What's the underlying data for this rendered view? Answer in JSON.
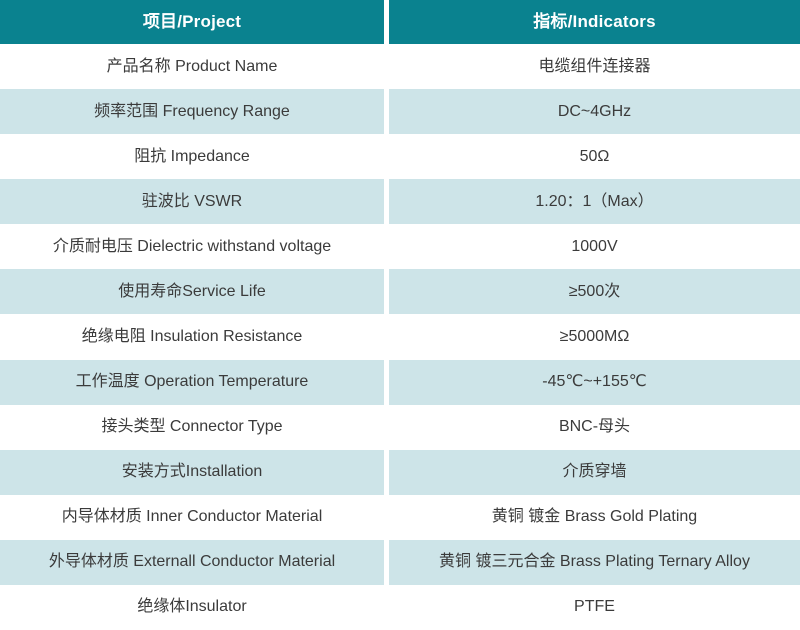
{
  "table": {
    "header": {
      "project": "项目/Project",
      "indicators": "指标/Indicators"
    },
    "rows": [
      {
        "label": "产品名称 Product Name",
        "value": "电缆组件连接器"
      },
      {
        "label": "频率范围 Frequency Range",
        "value": "DC~4GHz"
      },
      {
        "label": "阻抗 Impedance",
        "value": "50Ω"
      },
      {
        "label": "驻波比 VSWR",
        "value": "1.20：1（Max）"
      },
      {
        "label": "介质耐电压 Dielectric withstand voltage",
        "value": "1000V"
      },
      {
        "label": "使用寿命Service Life",
        "value": "≥500次"
      },
      {
        "label": "绝缘电阻 Insulation Resistance",
        "value": "≥5000MΩ"
      },
      {
        "label": "工作温度 Operation Temperature",
        "value": "-45℃~+155℃"
      },
      {
        "label": "接头类型 Connector Type",
        "value": "BNC-母头"
      },
      {
        "label": "安装方式Installation",
        "value": "介质穿墙"
      },
      {
        "label": "内导体材质 Inner Conductor Material",
        "value": "黄铜 镀金 Brass Gold Plating"
      },
      {
        "label": "外导体材质 Externall Conductor Material",
        "value": "黄铜 镀三元合金 Brass Plating Ternary Alloy"
      },
      {
        "label": "绝缘体Insulator",
        "value": "PTFE"
      }
    ],
    "colors": {
      "header_bg": "#0a828f",
      "header_text": "#ffffff",
      "alt_row_bg": "#cde4e8",
      "text": "#3b3b3b",
      "divider": "#ffffff"
    }
  }
}
